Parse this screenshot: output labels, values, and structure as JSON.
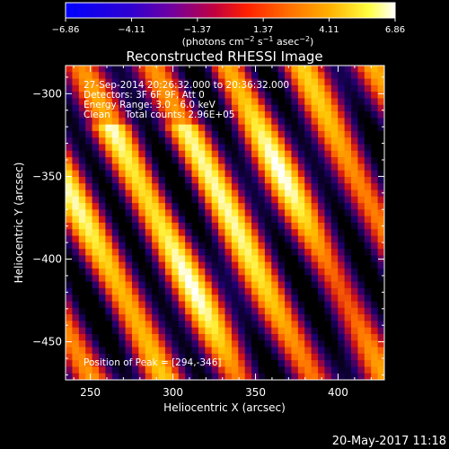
{
  "chart_data": {
    "type": "heatmap",
    "title": "Reconstructed RHESSI Image",
    "xlabel": "Heliocentric X (arcsec)",
    "ylabel": "Heliocentric Y (arcsec)",
    "xlim": [
      235,
      428
    ],
    "ylim": [
      -473,
      -283
    ],
    "x_ticks": [
      250,
      300,
      350,
      400
    ],
    "y_ticks": [
      -300,
      -350,
      -400,
      -450
    ],
    "colorbar": {
      "range": [
        -6.86,
        6.86
      ],
      "tick_values": [
        -6.86,
        -4.11,
        -1.37,
        1.37,
        4.11,
        6.86
      ],
      "tick_labels": [
        "−6.86",
        "−4.11",
        "−1.37",
        "1.37",
        "4.11",
        "6.86"
      ],
      "label": "(photons cm⁻² s⁻¹ asec⁻²)"
    },
    "annotations": [
      "27-Sep-2014 20:26:32.000 to 20:36:32.000",
      "Detectors: 3F 6F 9F, Att 0",
      "Energy Range: 3.0 - 6.0 keV",
      "Clean     Total counts: 2.96E+05"
    ],
    "peak_text": "Position of Peak = [294,-346]",
    "peak": [
      294,
      -346
    ],
    "grid": false,
    "footer_date": "20-May-2017 11:18"
  },
  "axis_tick_labels": {
    "x": [
      "250",
      "300",
      "350",
      "400"
    ],
    "y": [
      "−300",
      "−350",
      "−400",
      "−450"
    ]
  }
}
